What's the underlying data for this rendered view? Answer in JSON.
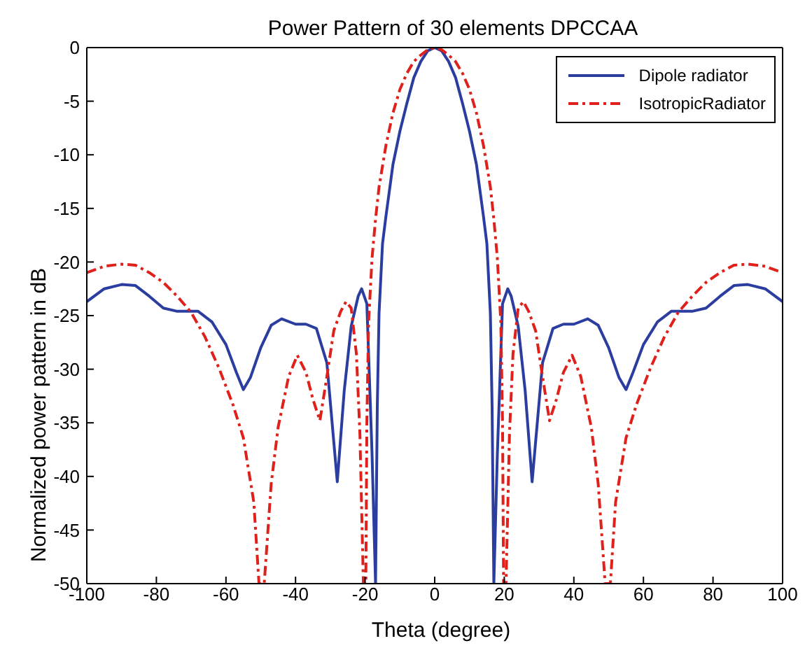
{
  "chart_data": {
    "type": "line",
    "title": "Power Pattern of 30 elements DPCCAA",
    "xlabel": "Theta (degree)",
    "ylabel": "Normalized power pattern in dB",
    "xlim": [
      -100,
      100
    ],
    "xticks": [
      -100,
      -80,
      -60,
      -40,
      -20,
      0,
      20,
      40,
      60,
      80,
      100
    ],
    "ylim": [
      -50,
      0
    ],
    "yticks": [
      -50,
      -45,
      -40,
      -35,
      -30,
      -25,
      -20,
      -15,
      -10,
      -5,
      0
    ],
    "grid": false,
    "legend": "top right",
    "marker": "none",
    "series": [
      {
        "name": "Dipole radiator",
        "color": "#2b3ea0",
        "line_style": "solid",
        "x": [
          -100,
          -95,
          -90,
          -86,
          -82,
          -78,
          -74,
          -68,
          -64,
          -60,
          -57,
          -55,
          -53,
          -50,
          -47,
          -44,
          -40,
          -37,
          -34,
          -31,
          -28,
          -26,
          -24,
          -22,
          -21,
          -19.5,
          -18,
          -17,
          -16.5,
          -16,
          -15,
          -14,
          -12,
          -10,
          -8,
          -6,
          -4,
          -2,
          0,
          2,
          4,
          6,
          8,
          10,
          12,
          14,
          15,
          16,
          16.5,
          17,
          18,
          19.5,
          21,
          22,
          24,
          26,
          28,
          31,
          34,
          37,
          40,
          44,
          47,
          50,
          53,
          55,
          57,
          60,
          64,
          68,
          74,
          78,
          82,
          86,
          90,
          95,
          100
        ],
        "values": [
          -23.7,
          -22.5,
          -22.1,
          -22.2,
          -23.2,
          -24.3,
          -24.6,
          -24.6,
          -25.6,
          -27.7,
          -30.3,
          -31.9,
          -30.8,
          -28,
          -25.9,
          -25.3,
          -25.8,
          -25.8,
          -26.2,
          -29.4,
          -40.5,
          -32,
          -26,
          -23.2,
          -22.5,
          -23.9,
          -38,
          -50,
          -33.5,
          -24.8,
          -18.3,
          -15.7,
          -10.9,
          -7.8,
          -5.2,
          -2.8,
          -1.3,
          -0.3,
          0,
          -0.3,
          -1.3,
          -2.8,
          -5.2,
          -7.8,
          -10.9,
          -15.7,
          -18.3,
          -24.8,
          -33.5,
          -50,
          -38,
          -23.9,
          -22.5,
          -23.2,
          -26,
          -32,
          -40.5,
          -29.4,
          -26.2,
          -25.8,
          -25.8,
          -25.3,
          -25.9,
          -28,
          -30.8,
          -31.9,
          -30.3,
          -27.7,
          -25.6,
          -24.6,
          -24.6,
          -24.3,
          -23.2,
          -22.2,
          -22.1,
          -22.5,
          -23.7
        ]
      },
      {
        "name": "IsotropicRadiator",
        "color": "#e0201b",
        "line_style": "dashed",
        "x": [
          -100,
          -95,
          -90,
          -86,
          -82,
          -78,
          -74,
          -70,
          -66,
          -62,
          -58,
          -55,
          -52,
          -50.5,
          -49,
          -47,
          -45,
          -42,
          -39.5,
          -37,
          -35,
          -33,
          -31,
          -29,
          -27,
          -25.5,
          -24,
          -22.5,
          -21.5,
          -20.5,
          -19.8,
          -19.5,
          -19,
          -18,
          -17,
          -16,
          -14,
          -12,
          -10,
          -8,
          -6,
          -4,
          -2,
          0,
          2,
          4,
          6,
          8,
          10,
          12,
          14,
          16,
          17,
          18,
          19,
          19.5,
          19.8,
          20.5,
          21.5,
          22.5,
          24,
          25.5,
          27,
          29,
          31,
          33,
          35,
          37,
          39.5,
          42,
          45,
          47,
          49,
          50.5,
          52,
          55,
          58,
          62,
          66,
          70,
          74,
          78,
          82,
          86,
          90,
          95,
          100
        ],
        "values": [
          -21,
          -20.4,
          -20.2,
          -20.3,
          -21,
          -21.9,
          -23.2,
          -24.7,
          -27,
          -29.9,
          -33.3,
          -36.4,
          -42.4,
          -50,
          -50,
          -40.7,
          -35.4,
          -30.7,
          -28.7,
          -30.3,
          -32.8,
          -34.8,
          -30.7,
          -26.4,
          -24.6,
          -23.7,
          -24.3,
          -28.6,
          -36,
          -50,
          -50,
          -35,
          -25.6,
          -19.6,
          -16,
          -13,
          -9.1,
          -6.1,
          -3.9,
          -2.4,
          -1.3,
          -0.7,
          -0.2,
          0,
          -0.2,
          -0.7,
          -1.3,
          -2.4,
          -3.9,
          -6.1,
          -9.1,
          -13,
          -16,
          -19.6,
          -25.6,
          -35,
          -50,
          -50,
          -36,
          -28.6,
          -24.3,
          -23.7,
          -24.6,
          -26.4,
          -30.7,
          -34.8,
          -32.8,
          -30.3,
          -28.7,
          -30.7,
          -35.4,
          -40.7,
          -50,
          -50,
          -42.4,
          -36.4,
          -33.3,
          -29.9,
          -27,
          -24.7,
          -23.2,
          -21.9,
          -21,
          -20.3,
          -20.2,
          -20.4,
          -21
        ]
      }
    ]
  }
}
